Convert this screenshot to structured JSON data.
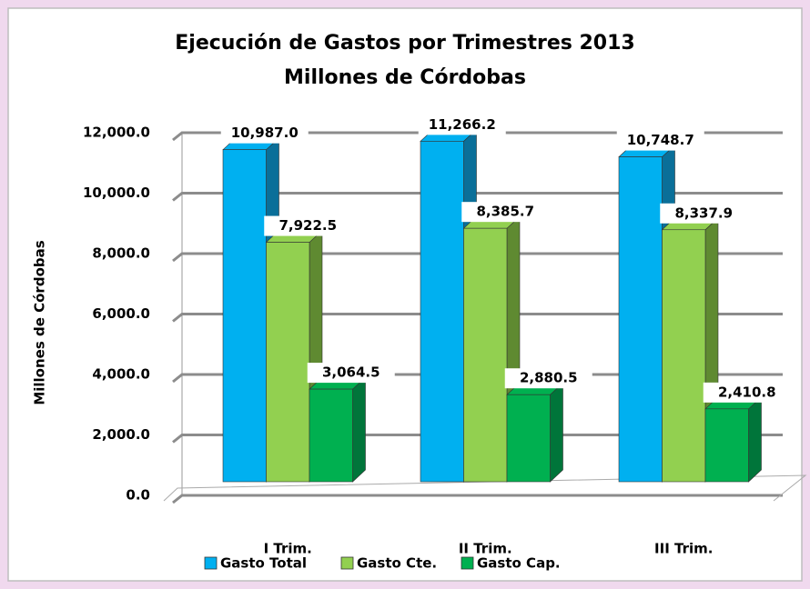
{
  "chart_data": {
    "type": "bar3d",
    "title": "Ejecución de Gastos por Trimestres  2013",
    "subtitle": "Millones de Córdobas",
    "y_label": "Millones de Córdobas",
    "categories": [
      "I Trim.",
      "II Trim.",
      "III Trim."
    ],
    "series": [
      {
        "name": "Gasto Total",
        "color": "#00b0f0",
        "side": "#0a6f99",
        "values": [
          10987.0,
          11266.2,
          10748.7
        ],
        "value_labels": [
          "10,987.0",
          "11,266.2",
          "10,748.7"
        ]
      },
      {
        "name": "Gasto Cte.",
        "color": "#92d050",
        "side": "#5f8a31",
        "values": [
          7922.5,
          8385.7,
          8337.9
        ],
        "value_labels": [
          "7,922.5",
          "8,385.7",
          "8,337.9"
        ]
      },
      {
        "name": "Gasto Cap.",
        "color": "#00b050",
        "side": "#00753a",
        "values": [
          3064.5,
          2880.5,
          2410.8
        ],
        "value_labels": [
          "3,064.5",
          "2,880.5",
          "2,410.8"
        ]
      }
    ],
    "ylim": [
      0,
      12000
    ],
    "yticks": [
      {
        "value": 0,
        "label": "0.0"
      },
      {
        "value": 2000,
        "label": "2,000.0"
      },
      {
        "value": 4000,
        "label": "4,000.0"
      },
      {
        "value": 6000,
        "label": "6,000.0"
      },
      {
        "value": 8000,
        "label": "8,000.0"
      },
      {
        "value": 10000,
        "label": "10,000.0"
      },
      {
        "value": 12000,
        "label": "12,000.0"
      }
    ],
    "grid": true,
    "legend": "bottom"
  }
}
